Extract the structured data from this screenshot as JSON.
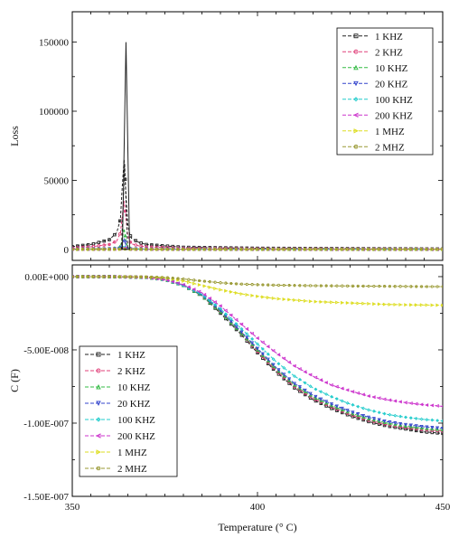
{
  "chart_data": [
    {
      "type": "line",
      "ylabel": "Loss",
      "xlabel": "",
      "xlim": [
        350,
        450
      ],
      "ylim": [
        -8000,
        172000
      ],
      "yticks": [
        0,
        50000,
        100000,
        150000
      ],
      "ytick_labels": [
        "0",
        "50000",
        "100000",
        "150000"
      ],
      "legend_position": "top-right",
      "x": [
        350,
        355,
        360,
        362,
        363,
        363.5,
        364,
        364.5,
        365,
        365.5,
        366,
        368,
        370,
        380,
        400,
        450
      ],
      "series": [
        {
          "name": "1 KHZ",
          "color": "#222222",
          "marker": "square",
          "values": [
            2000,
            3500,
            7000,
            12000,
            22000,
            45000,
            65000,
            40000,
            18000,
            11000,
            8000,
            5000,
            3500,
            1500,
            800,
            300
          ]
        },
        {
          "name": "2 KHZ",
          "color": "#e0407a",
          "marker": "circle",
          "values": [
            1000,
            1800,
            3500,
            6000,
            12000,
            24000,
            35000,
            22000,
            10000,
            6000,
            4000,
            2500,
            1800,
            800,
            400,
            150
          ]
        },
        {
          "name": "10 KHZ",
          "color": "#33bb44",
          "marker": "triangle-up",
          "values": [
            200,
            300,
            600,
            1000,
            2000,
            8000,
            15000,
            6000,
            1500,
            800,
            600,
            400,
            300,
            200,
            100,
            50
          ]
        },
        {
          "name": "20 KHZ",
          "color": "#3344cc",
          "marker": "triangle-down",
          "values": [
            100,
            200,
            300,
            500,
            1000,
            4000,
            8000,
            3000,
            800,
            400,
            300,
            200,
            150,
            100,
            60,
            30
          ]
        },
        {
          "name": "100 KHZ",
          "color": "#22cccc",
          "marker": "diamond",
          "values": [
            50,
            80,
            120,
            200,
            400,
            1200,
            2500,
            1000,
            300,
            150,
            100,
            80,
            60,
            40,
            25,
            10
          ]
        },
        {
          "name": "200 KHZ",
          "color": "#cc33cc",
          "marker": "triangle-left",
          "values": [
            30,
            50,
            80,
            120,
            250,
            700,
            1500,
            600,
            200,
            100,
            80,
            60,
            40,
            30,
            20,
            10
          ]
        },
        {
          "name": "1 MHZ",
          "color": "#dddd22",
          "marker": "triangle-right",
          "values": [
            10,
            15,
            25,
            40,
            80,
            200,
            400,
            180,
            60,
            30,
            25,
            20,
            15,
            10,
            8,
            5
          ]
        },
        {
          "name": "2 MHZ",
          "color": "#999933",
          "marker": "hexagon",
          "values": [
            5,
            8,
            12,
            20,
            40,
            100,
            200,
            90,
            30,
            15,
            12,
            10,
            8,
            6,
            4,
            2
          ]
        }
      ],
      "peak": {
        "series_name": "1 KHZ",
        "x": 364.5,
        "values": [
          150000,
          145000,
          120000,
          90000,
          62000,
          45000,
          30000,
          20000,
          12000,
          6000,
          2000
        ]
      }
    },
    {
      "type": "line",
      "ylabel": "C (F)",
      "xlabel": "Temperature (° C)",
      "xlim": [
        350,
        450
      ],
      "ylim": [
        -1.5e-07,
        8e-09
      ],
      "xticks": [
        350,
        400,
        450
      ],
      "xtick_labels": [
        "350",
        "400",
        "450"
      ],
      "yticks": [
        0,
        -5e-08,
        -1e-07,
        -1.5e-07
      ],
      "ytick_labels": [
        "0.00E+000",
        "-5.00E-008",
        "-1.00E-007",
        "-1.50E-007"
      ],
      "legend_position": "bottom-left",
      "x": [
        350,
        360,
        370,
        375,
        380,
        385,
        390,
        395,
        400,
        405,
        410,
        415,
        420,
        425,
        430,
        435,
        440,
        445,
        450
      ],
      "series": [
        {
          "name": "1 KHZ",
          "color": "#222222",
          "marker": "square",
          "values": [
            0,
            0,
            -5e-10,
            -2e-09,
            -6e-09,
            -1.3e-08,
            -2.5e-08,
            -3.8e-08,
            -5.2e-08,
            -6.5e-08,
            -7.6e-08,
            -8.4e-08,
            -9e-08,
            -9.5e-08,
            -9.9e-08,
            -1.02e-07,
            -1.04e-07,
            -1.06e-07,
            -1.07e-07
          ]
        },
        {
          "name": "2 KHZ",
          "color": "#e0407a",
          "marker": "circle",
          "values": [
            0,
            0,
            -5e-10,
            -2e-09,
            -6e-09,
            -1.3e-08,
            -2.4e-08,
            -3.7e-08,
            -5.1e-08,
            -6.4e-08,
            -7.5e-08,
            -8.3e-08,
            -8.9e-08,
            -9.4e-08,
            -9.8e-08,
            -1.01e-07,
            -1.03e-07,
            -1.045e-07,
            -1.055e-07
          ]
        },
        {
          "name": "10 KHZ",
          "color": "#33bb44",
          "marker": "triangle-up",
          "values": [
            0,
            0,
            -5e-10,
            -2e-09,
            -6e-09,
            -1.3e-08,
            -2.4e-08,
            -3.7e-08,
            -5e-08,
            -6.3e-08,
            -7.4e-08,
            -8.2e-08,
            -8.8e-08,
            -9.3e-08,
            -9.7e-08,
            -1e-07,
            -1.02e-07,
            -1.035e-07,
            -1.045e-07
          ]
        },
        {
          "name": "20 KHZ",
          "color": "#3344cc",
          "marker": "triangle-down",
          "values": [
            0,
            0,
            -5e-10,
            -2e-09,
            -6e-09,
            -1.25e-08,
            -2.3e-08,
            -3.6e-08,
            -4.9e-08,
            -6.2e-08,
            -7.3e-08,
            -8.1e-08,
            -8.7e-08,
            -9.2e-08,
            -9.6e-08,
            -9.9e-08,
            -1.01e-07,
            -1.025e-07,
            -1.035e-07
          ]
        },
        {
          "name": "100 KHZ",
          "color": "#22cccc",
          "marker": "diamond",
          "values": [
            0,
            0,
            -5e-10,
            -2e-09,
            -6e-09,
            -1.2e-08,
            -2.2e-08,
            -3.4e-08,
            -4.6e-08,
            -5.8e-08,
            -6.8e-08,
            -7.6e-08,
            -8.2e-08,
            -8.7e-08,
            -9.1e-08,
            -9.4e-08,
            -9.6e-08,
            -9.75e-08,
            -9.85e-08
          ]
        },
        {
          "name": "200 KHZ",
          "color": "#cc33cc",
          "marker": "triangle-left",
          "values": [
            0,
            0,
            -5e-10,
            -2e-09,
            -5.5e-09,
            -1.1e-08,
            -2e-08,
            -3.1e-08,
            -4.2e-08,
            -5.2e-08,
            -6.1e-08,
            -6.8e-08,
            -7.4e-08,
            -7.8e-08,
            -8.15e-08,
            -8.4e-08,
            -8.6e-08,
            -8.75e-08,
            -8.85e-08
          ]
        },
        {
          "name": "1 MHZ",
          "color": "#dddd22",
          "marker": "triangle-right",
          "values": [
            0,
            0,
            -3e-10,
            -1e-09,
            -3e-09,
            -6e-09,
            -9e-09,
            -1.15e-08,
            -1.35e-08,
            -1.5e-08,
            -1.6e-08,
            -1.7e-08,
            -1.75e-08,
            -1.8e-08,
            -1.85e-08,
            -1.9e-08,
            -1.92e-08,
            -1.94e-08,
            -1.95e-08
          ]
        },
        {
          "name": "2 MHZ",
          "color": "#999933",
          "marker": "hexagon",
          "values": [
            0,
            0,
            -2e-10,
            -6e-10,
            -1.6e-09,
            -3e-09,
            -4.2e-09,
            -5e-09,
            -5.5e-09,
            -5.8e-09,
            -6e-09,
            -6.2e-09,
            -6.3e-09,
            -6.4e-09,
            -6.5e-09,
            -6.6e-09,
            -6.7e-09,
            -6.8e-09,
            -6.8e-09
          ]
        }
      ]
    }
  ]
}
